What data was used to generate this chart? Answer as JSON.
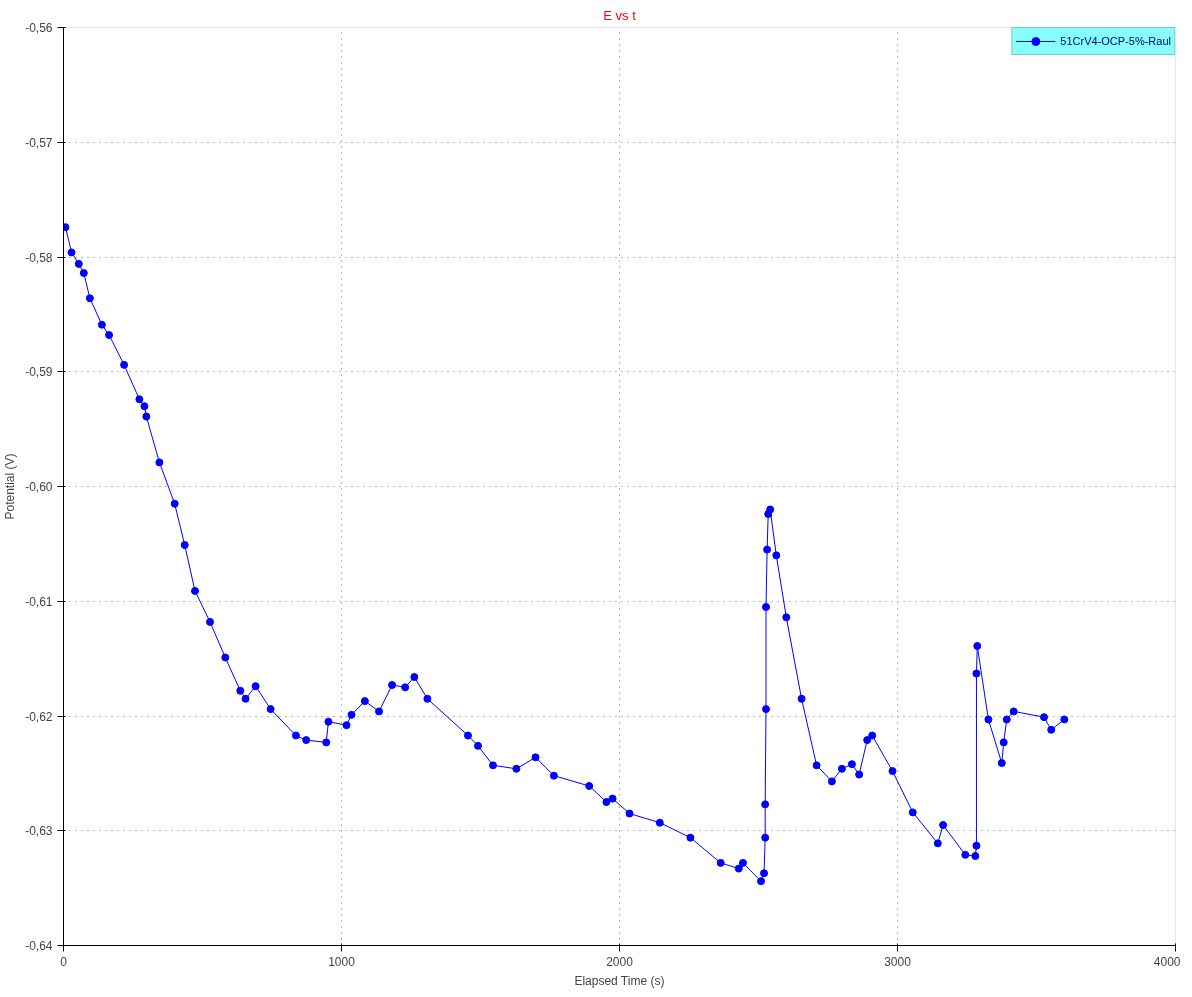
{
  "chart_data": {
    "type": "line",
    "title": "E vs t",
    "xlabel": "Elapsed Time (s)",
    "ylabel": "Potential (V)",
    "x": [
      7,
      29,
      55,
      73,
      95,
      138,
      164,
      218,
      273,
      291,
      298,
      345,
      400,
      436,
      473,
      527,
      582,
      636,
      655,
      691,
      745,
      836,
      873,
      945,
      953,
      1018,
      1036,
      1084,
      1135,
      1182,
      1229,
      1262,
      1309,
      1455,
      1491,
      1545,
      1629,
      1698,
      1764,
      1891,
      1953,
      1975,
      2036,
      2145,
      2255,
      2364,
      2429,
      2444,
      2509,
      2520,
      2524,
      2524,
      2527,
      2527,
      2531,
      2535,
      2542,
      2564,
      2600,
      2655,
      2709,
      2764,
      2800,
      2836,
      2862,
      2891,
      2909,
      2982,
      3055,
      3145,
      3164,
      3244,
      3280,
      3284,
      3284,
      3287,
      3327,
      3375,
      3382,
      3393,
      3418,
      3527,
      3553,
      3600
    ],
    "series": [
      {
        "name": "51CrV4-OCP-5%-Raul",
        "color": "#0000ff",
        "values": [
          -0.5774,
          -0.5796,
          -0.5806,
          -0.5814,
          -0.5836,
          -0.5859,
          -0.5868,
          -0.5894,
          -0.5924,
          -0.593,
          -0.5939,
          -0.5979,
          -0.6015,
          -0.6051,
          -0.6091,
          -0.6118,
          -0.6149,
          -0.6178,
          -0.6185,
          -0.6174,
          -0.6194,
          -0.6217,
          -0.6221,
          -0.6223,
          -0.6205,
          -0.6208,
          -0.6199,
          -0.6187,
          -0.6196,
          -0.6173,
          -0.6175,
          -0.6166,
          -0.6185,
          -0.6217,
          -0.6226,
          -0.6243,
          -0.6246,
          -0.6236,
          -0.6252,
          -0.6261,
          -0.6275,
          -0.6272,
          -0.6285,
          -0.6293,
          -0.6306,
          -0.6328,
          -0.6333,
          -0.6328,
          -0.6344,
          -0.6337,
          -0.6306,
          -0.6277,
          -0.6194,
          -0.6105,
          -0.6055,
          -0.6024,
          -0.602,
          -0.606,
          -0.6114,
          -0.6185,
          -0.6243,
          -0.6257,
          -0.6246,
          -0.6242,
          -0.6251,
          -0.6221,
          -0.6217,
          -0.6248,
          -0.6284,
          -0.6311,
          -0.6295,
          -0.6321,
          -0.6322,
          -0.6313,
          -0.6163,
          -0.6139,
          -0.6203,
          -0.6241,
          -0.6223,
          -0.6203,
          -0.6196,
          -0.6201,
          -0.6212,
          -0.6203
        ]
      }
    ],
    "xlim": [
      0,
      4000
    ],
    "xticks": [
      0,
      1000,
      2000,
      3000,
      4000
    ],
    "ylim": [
      -0.64,
      -0.56
    ],
    "yticks": [
      {
        "value": -0.64,
        "label": "-0,64"
      },
      {
        "value": -0.63,
        "label": "-0,63"
      },
      {
        "value": -0.62,
        "label": "-0,62"
      },
      {
        "value": -0.61,
        "label": "-0,61"
      },
      {
        "value": -0.6,
        "label": "-0,60"
      },
      {
        "value": -0.59,
        "label": "-0,59"
      },
      {
        "value": -0.58,
        "label": "-0,58"
      },
      {
        "value": -0.57,
        "label": "-0,57"
      },
      {
        "value": -0.56,
        "label": "-0,56"
      }
    ],
    "grid": true,
    "legend": "top right",
    "marker": "circle",
    "line_style": "solid"
  }
}
